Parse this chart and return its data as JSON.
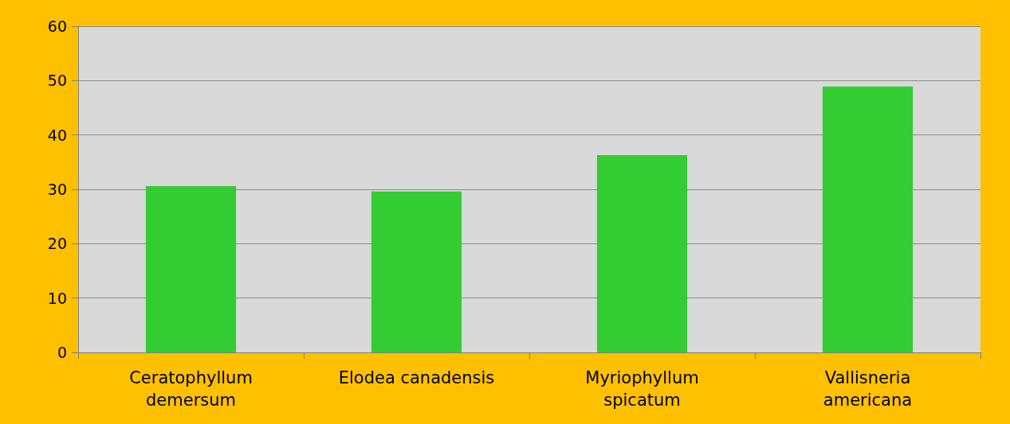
{
  "chart_data": {
    "type": "bar",
    "categories": [
      "Ceratophyllum\ndemersum",
      "Elodea canadensis",
      "Myriophyllum\nspicatum",
      "Vallisneria\namericana"
    ],
    "values": [
      30.6,
      29.6,
      36.3,
      48.9
    ],
    "color": "#33cc33",
    "ylim": [
      0,
      60
    ],
    "yticks": [
      0,
      10,
      20,
      30,
      40,
      50,
      60
    ],
    "grid": "y"
  }
}
